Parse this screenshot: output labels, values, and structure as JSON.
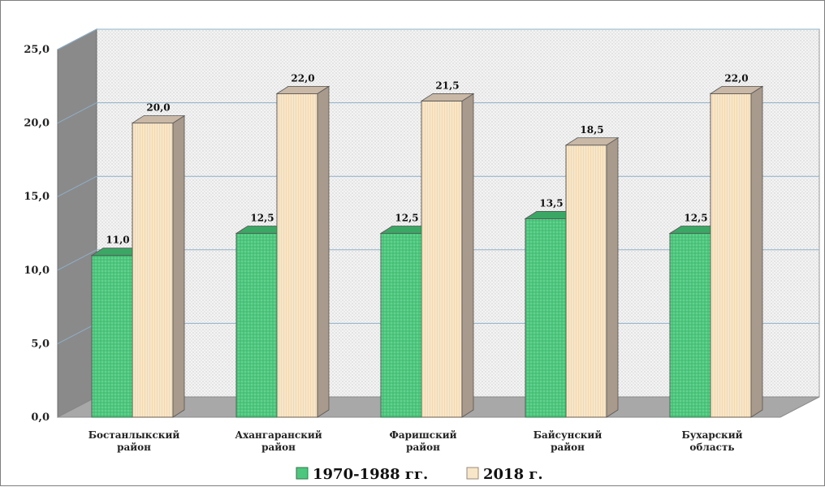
{
  "chart_data": {
    "type": "bar",
    "title": "",
    "xlabel": "",
    "ylabel": "",
    "ylim": [
      0,
      25
    ],
    "y_ticks": [
      "0,0",
      "5,0",
      "10,0",
      "15,0",
      "20,0",
      "25,0"
    ],
    "y_tick_values": [
      0,
      5,
      10,
      15,
      20,
      25
    ],
    "grid": true,
    "legend_position": "bottom",
    "categories": [
      [
        "Бостанлыкский",
        "район"
      ],
      [
        "Ахангаранский",
        "район"
      ],
      [
        "Фаришский",
        "район"
      ],
      [
        "Байсунский",
        "район"
      ],
      [
        "Бухарский",
        "область"
      ]
    ],
    "series": [
      {
        "name": "1970-1988 гг.",
        "color": "#4ec77e",
        "values": [
          11.0,
          12.5,
          12.5,
          13.5,
          12.5
        ],
        "labels": [
          "11,0",
          "12,5",
          "12,5",
          "13,5",
          "12,5"
        ]
      },
      {
        "name": "2018 г.",
        "color": "#f8e6c8",
        "values": [
          20.0,
          22.0,
          21.5,
          18.5,
          22.0
        ],
        "labels": [
          "20,0",
          "22,0",
          "21,5",
          "18,5",
          "22,0"
        ]
      }
    ]
  }
}
